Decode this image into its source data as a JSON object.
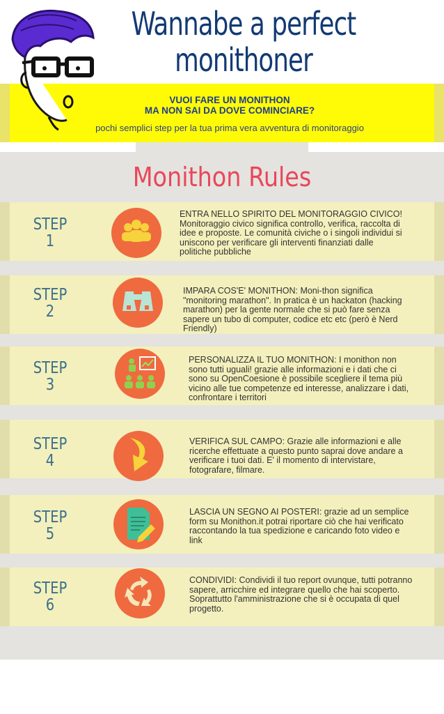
{
  "header": {
    "title": "Wannabe a perfect monithoner",
    "question_line1": "VUOI FARE UN MONITHON",
    "question_line2": "MA NON SAI DA DOVE COMINCIARE?",
    "tagline": "pochi semplici step per la tua prima vera avventura di monitoraggio"
  },
  "rules_title": "Monithon Rules",
  "colors": {
    "title": "#123a73",
    "banner": "#fffb06",
    "rules_title": "#e9475a",
    "card": "#f3f0bd",
    "circle": "#ef6a3f",
    "step_label": "#3c6f8a"
  },
  "steps": [
    {
      "label": "STEP",
      "number": "1",
      "icon": "group-people-icon",
      "text": "ENTRA NELLO SPIRITO DEL MONITORAGGIO CIVICO!  Monitoraggio civico significa controllo, verifica, raccolta di idee e proposte. Le comunità civiche o i singoli individui si uniscono per verificare gli interventi finanziati dalle politiche pubbliche"
    },
    {
      "label": "STEP",
      "number": "2",
      "icon": "binoculars-icon",
      "text": "IMPARA COS'E' MONITHON: Moni-thon significa \"monitoring marathon\". In pratica è un hackaton (hacking marathon) per la gente normale che si può fare senza sapere un tubo di computer, codice etc etc (però è Nerd Friendly)"
    },
    {
      "label": "STEP",
      "number": "3",
      "icon": "presentation-icon",
      "text": "PERSONALIZZA IL TUO MONITHON: I monithon non sono tutti uguali! grazie alle informazioni e i dati che ci sono su OpenCoesione è possibile scegliere il tema più vicino alle tue competenze ed interesse, analizzare i dati, confrontare i territori"
    },
    {
      "label": "STEP",
      "number": "4",
      "icon": "curved-arrow-icon",
      "text": "VERIFICA SUL CAMPO: Grazie alle informazioni e alle ricerche effettuate a questo punto saprai dove andare a verificare i tuoi dati. E' il momento di intervistare, fotografare, filmare."
    },
    {
      "label": "STEP",
      "number": "5",
      "icon": "document-pencil-icon",
      "text": "LASCIA UN SEGNO AI POSTERI: grazie ad un semplice form su Monithon.it potrai riportare ciò che hai verificato raccontando la tua spedizione e caricando foto video e link"
    },
    {
      "label": "STEP",
      "number": "6",
      "icon": "recycle-arrows-icon",
      "text": "CONDIVIDI: Condividi il tuo report ovunque, tutti potranno sapere, arricchire ed integrare quello che hai scoperto. Soprattutto l'amministrazione che si è occupata di quel progetto."
    }
  ]
}
